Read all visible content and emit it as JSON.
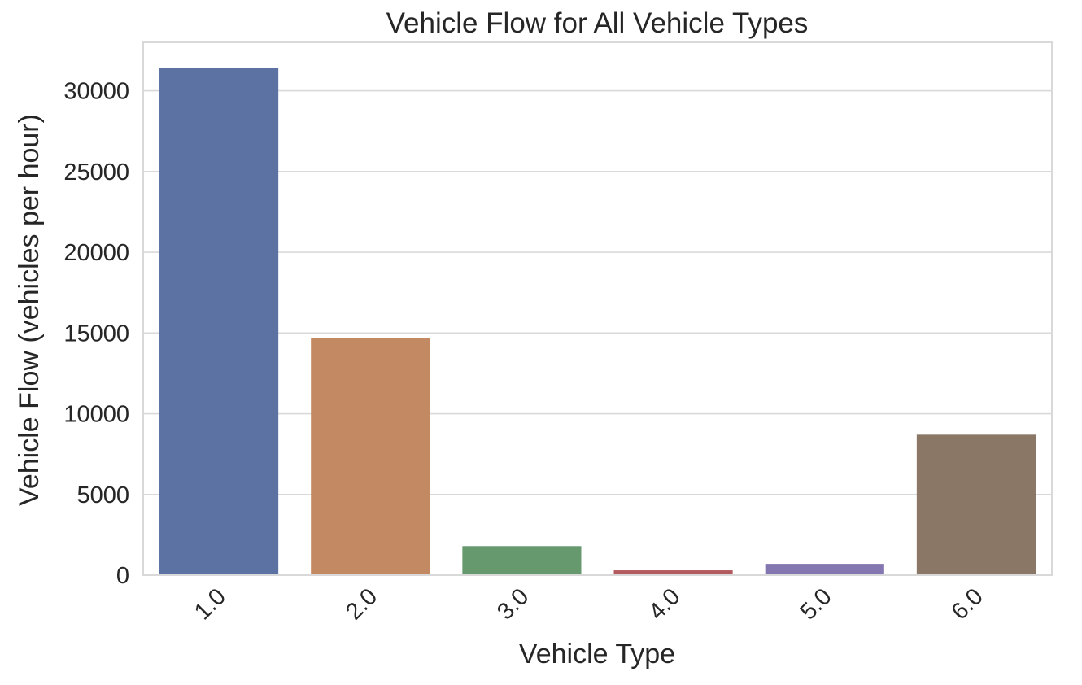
{
  "chart_data": {
    "type": "bar",
    "title": "Vehicle Flow for All Vehicle Types",
    "xlabel": "Vehicle Type",
    "ylabel": "Vehicle Flow (vehicles per hour)",
    "categories": [
      "1.0",
      "2.0",
      "3.0",
      "4.0",
      "5.0",
      "6.0"
    ],
    "values": [
      31400,
      14700,
      1800,
      300,
      700,
      8700
    ],
    "colors": [
      "#5c72a3",
      "#c38962",
      "#67996e",
      "#b35a5f",
      "#8376b1",
      "#8a7766"
    ],
    "ylim": [
      0,
      33000
    ],
    "yticks": [
      0,
      5000,
      10000,
      15000,
      20000,
      25000,
      30000
    ],
    "ytick_labels": [
      "0",
      "5000",
      "10000",
      "15000",
      "20000",
      "25000",
      "30000"
    ],
    "grid": true,
    "xtick_rotation": "45"
  }
}
